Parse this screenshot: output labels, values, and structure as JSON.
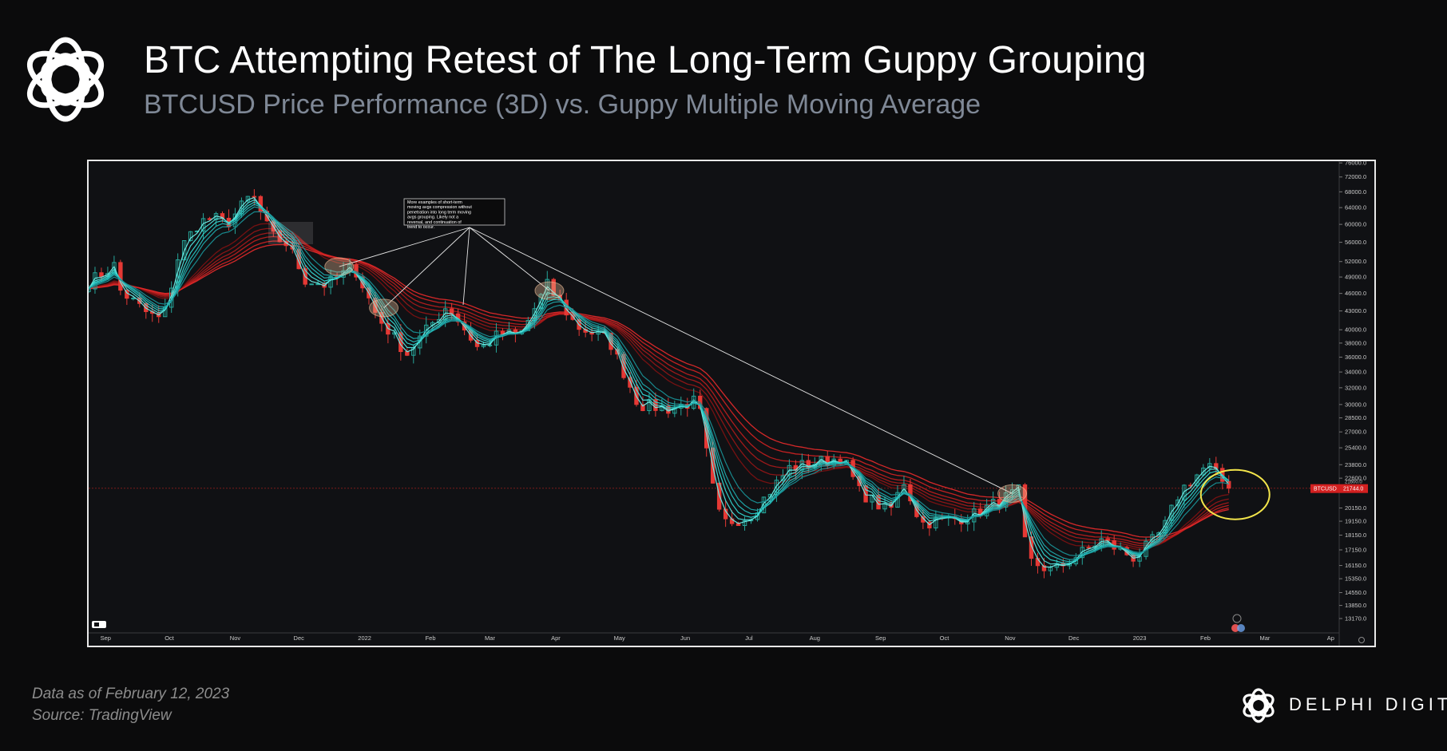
{
  "header": {
    "title": "BTC Attempting Retest of The Long-Term Guppy Grouping",
    "subtitle": "BTCUSD Price Performance (3D) vs. Guppy Multiple Moving Average"
  },
  "footer": {
    "date_note": "Data as of February 12, 2023",
    "source": "Source: TradingView"
  },
  "brand": {
    "name": "DELPHI DIGITAL",
    "logo_icon": "delphi-knot-icon"
  },
  "colors": {
    "background": "#0b0b0c",
    "up": "#26a69a",
    "down": "#e53935",
    "short_term": "#33d6d0",
    "long_term": "#c81e1e",
    "highlight": "#f3e54b"
  },
  "chart_data": {
    "type": "candlestick",
    "title": "",
    "xlabel": "",
    "ylabel": "",
    "y_scale": "log",
    "ylim": [
      12500,
      76500
    ],
    "x_range": [
      "2021-08-24",
      "2023-04-05"
    ],
    "y_ticks": [
      "76000.0",
      "72000.0",
      "68000.0",
      "64000.0",
      "60000.0",
      "56000.0",
      "52000.0",
      "49000.0",
      "46000.0",
      "43000.0",
      "40000.0",
      "38000.0",
      "36000.0",
      "34000.0",
      "32000.0",
      "30000.0",
      "28500.0",
      "27000.0",
      "25400.0",
      "23800.0",
      "22600.0",
      "20150.0",
      "19150.0",
      "18150.0",
      "17150.0",
      "16150.0",
      "15350.0",
      "14550.0",
      "13850.0",
      "13170.0"
    ],
    "x_ticks": [
      {
        "label": "Sep",
        "date": "2021-09-01"
      },
      {
        "label": "Oct",
        "date": "2021-10-01"
      },
      {
        "label": "Nov",
        "date": "2021-11-01"
      },
      {
        "label": "Dec",
        "date": "2021-12-01"
      },
      {
        "label": "2022",
        "date": "2022-01-01"
      },
      {
        "label": "Feb",
        "date": "2022-02-01"
      },
      {
        "label": "Mar",
        "date": "2022-03-01"
      },
      {
        "label": "Apr",
        "date": "2022-04-01"
      },
      {
        "label": "May",
        "date": "2022-05-01"
      },
      {
        "label": "Jun",
        "date": "2022-06-01"
      },
      {
        "label": "Jul",
        "date": "2022-07-01"
      },
      {
        "label": "Aug",
        "date": "2022-08-01"
      },
      {
        "label": "Sep",
        "date": "2022-09-01"
      },
      {
        "label": "Oct",
        "date": "2022-10-01"
      },
      {
        "label": "Nov",
        "date": "2022-11-01"
      },
      {
        "label": "Dec",
        "date": "2022-12-01"
      },
      {
        "label": "2023",
        "date": "2023-01-01"
      },
      {
        "label": "Feb",
        "date": "2023-02-01"
      },
      {
        "label": "Mar",
        "date": "2023-03-01"
      },
      {
        "label": "Ap",
        "date": "2023-04-01"
      }
    ],
    "price_label": {
      "symbol": "BTCUSD",
      "value": "21744.0",
      "overlap_value": "21600.0"
    },
    "annotation": "More examples of short-term moving avgs compression without penetration into long term moving avgs grouping. Likely not a reversal, and continuation of trend to occur.",
    "price_path": [
      {
        "date": "2021-08-24",
        "price": 48000
      },
      {
        "date": "2021-09-06",
        "price": 51500
      },
      {
        "date": "2021-09-08",
        "price": 46500
      },
      {
        "date": "2021-09-21",
        "price": 42500
      },
      {
        "date": "2021-09-28",
        "price": 41500
      },
      {
        "date": "2021-10-06",
        "price": 54500
      },
      {
        "date": "2021-10-15",
        "price": 60500
      },
      {
        "date": "2021-10-22",
        "price": 61500
      },
      {
        "date": "2021-10-28",
        "price": 60000
      },
      {
        "date": "2021-11-09",
        "price": 67500
      },
      {
        "date": "2021-11-18",
        "price": 57500
      },
      {
        "date": "2021-11-26",
        "price": 55500
      },
      {
        "date": "2021-12-04",
        "price": 48500
      },
      {
        "date": "2021-12-14",
        "price": 47500
      },
      {
        "date": "2021-12-27",
        "price": 51000
      },
      {
        "date": "2022-01-07",
        "price": 42000
      },
      {
        "date": "2022-01-21",
        "price": 36500
      },
      {
        "date": "2022-02-09",
        "price": 44000
      },
      {
        "date": "2022-02-24",
        "price": 37000
      },
      {
        "date": "2022-03-06",
        "price": 39500
      },
      {
        "date": "2022-03-15",
        "price": 39000
      },
      {
        "date": "2022-03-28",
        "price": 47500
      },
      {
        "date": "2022-04-11",
        "price": 40500
      },
      {
        "date": "2022-04-26",
        "price": 38500
      },
      {
        "date": "2022-05-10",
        "price": 30000
      },
      {
        "date": "2022-05-25",
        "price": 29500
      },
      {
        "date": "2022-06-07",
        "price": 30500
      },
      {
        "date": "2022-06-13",
        "price": 22500
      },
      {
        "date": "2022-06-18",
        "price": 19000
      },
      {
        "date": "2022-07-01",
        "price": 19500
      },
      {
        "date": "2022-07-20",
        "price": 23500
      },
      {
        "date": "2022-08-14",
        "price": 24500
      },
      {
        "date": "2022-08-22",
        "price": 21500
      },
      {
        "date": "2022-09-05",
        "price": 19800
      },
      {
        "date": "2022-09-12",
        "price": 22300
      },
      {
        "date": "2022-09-20",
        "price": 19000
      },
      {
        "date": "2022-10-13",
        "price": 19500
      },
      {
        "date": "2022-11-05",
        "price": 21500
      },
      {
        "date": "2022-11-09",
        "price": 16500
      },
      {
        "date": "2022-11-21",
        "price": 15800
      },
      {
        "date": "2022-12-14",
        "price": 17800
      },
      {
        "date": "2022-12-30",
        "price": 16600
      },
      {
        "date": "2023-01-12",
        "price": 18500
      },
      {
        "date": "2023-01-20",
        "price": 21500
      },
      {
        "date": "2023-02-02",
        "price": 23800
      },
      {
        "date": "2023-02-12",
        "price": 21744
      }
    ],
    "series": [
      {
        "group": "short-term",
        "values_note": "six cyan EMAs tracking price closely"
      },
      {
        "group": "long-term",
        "values_note": "six red EMAs forming the lagging band"
      }
    ],
    "highlights": [
      {
        "date": "2021-12-20",
        "price": 51000
      },
      {
        "date": "2022-01-10",
        "price": 43500
      },
      {
        "date": "2022-03-29",
        "price": 46500
      },
      {
        "date": "2022-11-02",
        "price": 21300
      },
      {
        "date": "2023-02-12",
        "price": 21744,
        "style": "yellow-circle"
      }
    ]
  }
}
